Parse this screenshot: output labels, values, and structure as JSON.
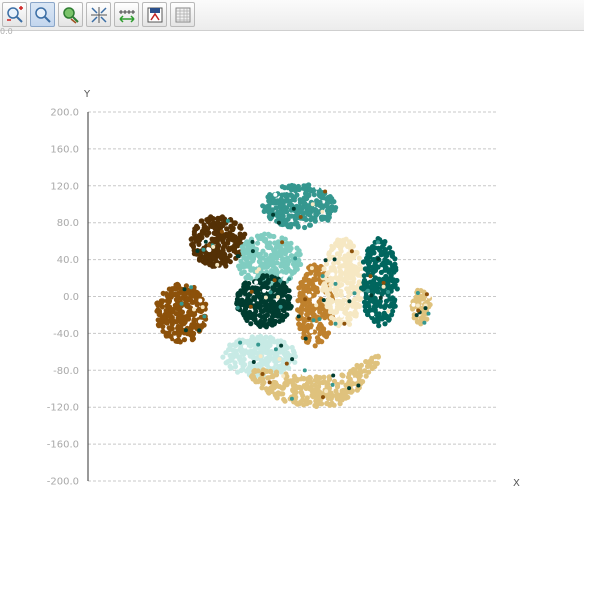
{
  "toolbar": {
    "buttons": [
      {
        "name": "zoom-in-out-button",
        "icon": "zoom-in-out-icon"
      },
      {
        "name": "zoom-button",
        "icon": "magnifier-icon",
        "active": true
      },
      {
        "name": "zoom-reset-button",
        "icon": "zoom-reset-icon"
      },
      {
        "name": "fit-axes-button",
        "icon": "fit-axes-icon"
      },
      {
        "name": "axis-settings-button",
        "icon": "axis-settings-icon"
      },
      {
        "name": "export-button",
        "icon": "export-icon"
      },
      {
        "name": "table-view-button",
        "icon": "table-icon"
      }
    ],
    "corner_label": "0.0"
  },
  "chart_data": {
    "type": "scatter",
    "title": "",
    "xlabel": "X",
    "ylabel": "Y",
    "ylim": [
      -200,
      200
    ],
    "xlim": [
      -200,
      200
    ],
    "y_ticks": [
      "200.0",
      "160.0",
      "120.0",
      "80.0",
      "40.0",
      "0.0",
      "-40.0",
      "-80.0",
      "-120.0",
      "-160.0",
      "-200.0"
    ],
    "y_tick_values": [
      200,
      160,
      120,
      80,
      40,
      0,
      -40,
      -80,
      -120,
      -160,
      -200
    ],
    "grid": "horizontal-dashed",
    "legend": "none",
    "clusters": [
      {
        "color": "#543005",
        "cx": -80,
        "cy": 60,
        "rx": 30,
        "ry": 28,
        "n": 240
      },
      {
        "color": "#35978f",
        "cx": 8,
        "cy": 98,
        "rx": 40,
        "ry": 24,
        "n": 260
      },
      {
        "color": "#80cdc1",
        "cx": -25,
        "cy": 40,
        "rx": 36,
        "ry": 28,
        "n": 260
      },
      {
        "color": "#8c510a",
        "cx": -120,
        "cy": -18,
        "rx": 28,
        "ry": 32,
        "n": 260
      },
      {
        "color": "#003c30",
        "cx": -30,
        "cy": -5,
        "rx": 30,
        "ry": 28,
        "n": 260
      },
      {
        "color": "#bf812d",
        "cx": 25,
        "cy": -10,
        "rx": 20,
        "ry": 45,
        "n": 240
      },
      {
        "color": "#f6e8c3",
        "cx": 55,
        "cy": 15,
        "rx": 22,
        "ry": 48,
        "n": 240
      },
      {
        "color": "#01665e",
        "cx": 95,
        "cy": 15,
        "rx": 20,
        "ry": 48,
        "n": 240
      },
      {
        "color": "#c7eae5",
        "cx": -35,
        "cy": -65,
        "rx": 40,
        "ry": 22,
        "n": 260
      },
      {
        "color": "#dfc27d",
        "cx": 25,
        "cy": -95,
        "rx": 70,
        "ry": 18,
        "n": 280
      },
      {
        "color": "#dfc27d",
        "cx": 140,
        "cy": -10,
        "rx": 10,
        "ry": 20,
        "n": 60
      }
    ]
  }
}
